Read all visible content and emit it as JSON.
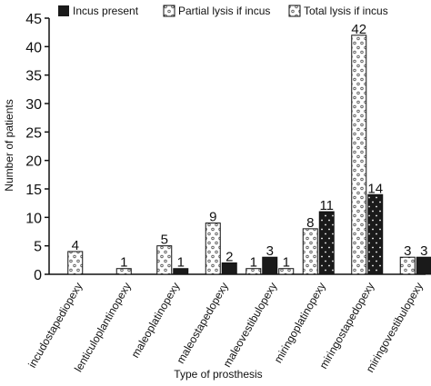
{
  "chart_data": {
    "type": "bar",
    "xlabel": "Type of prosthesis",
    "ylabel": "Number of patients",
    "ylim": [
      0,
      45
    ],
    "yticks": [
      0,
      5,
      10,
      15,
      20,
      25,
      30,
      35,
      40,
      45
    ],
    "grid": false,
    "legend_position": "top",
    "categories": [
      "incudostapediopexy",
      "lenticuloplantinopexy",
      "maleoplatinopexy",
      "maleostapedopexy",
      "maleovestibulopexy",
      "miringoplatinopexy",
      "miringostapedopexy",
      "miringovestibulopexy"
    ],
    "legend": [
      "Incus present",
      "Partial lysis if incus",
      "Total lysis if incus"
    ],
    "bars": [
      {
        "category": 0,
        "value": 4,
        "label": "4",
        "style": "partial"
      },
      {
        "category": 1,
        "value": 1,
        "label": "1",
        "style": "partial"
      },
      {
        "category": 2,
        "value": 5,
        "label": "5",
        "style": "partial"
      },
      {
        "category": 2,
        "value": 1,
        "label": "1",
        "style": "present"
      },
      {
        "category": 3,
        "value": 9,
        "label": "9",
        "style": "partial"
      },
      {
        "category": 3,
        "value": 2,
        "label": "2",
        "style": "present"
      },
      {
        "category": 4,
        "value": 1,
        "label": "1",
        "style": "partial"
      },
      {
        "category": 4,
        "value": 3,
        "label": "3",
        "style": "present"
      },
      {
        "category": 4,
        "value": 1,
        "label": "1",
        "style": "partial"
      },
      {
        "category": 5,
        "value": 8,
        "label": "8",
        "style": "partial"
      },
      {
        "category": 5,
        "value": 11,
        "label": "11",
        "style": "total"
      },
      {
        "category": 6,
        "value": 42,
        "label": "42",
        "style": "partial"
      },
      {
        "category": 6,
        "value": 14,
        "label": "14",
        "style": "total"
      },
      {
        "category": 7,
        "value": 3,
        "label": "3",
        "style": "partial"
      },
      {
        "category": 7,
        "value": 3,
        "label": "3",
        "style": "present"
      }
    ]
  },
  "colors": {
    "present": "#1a1a1a",
    "partial_fill": "#ffffff",
    "dot_light": "#555555",
    "dot_dark": "#ffffff"
  }
}
